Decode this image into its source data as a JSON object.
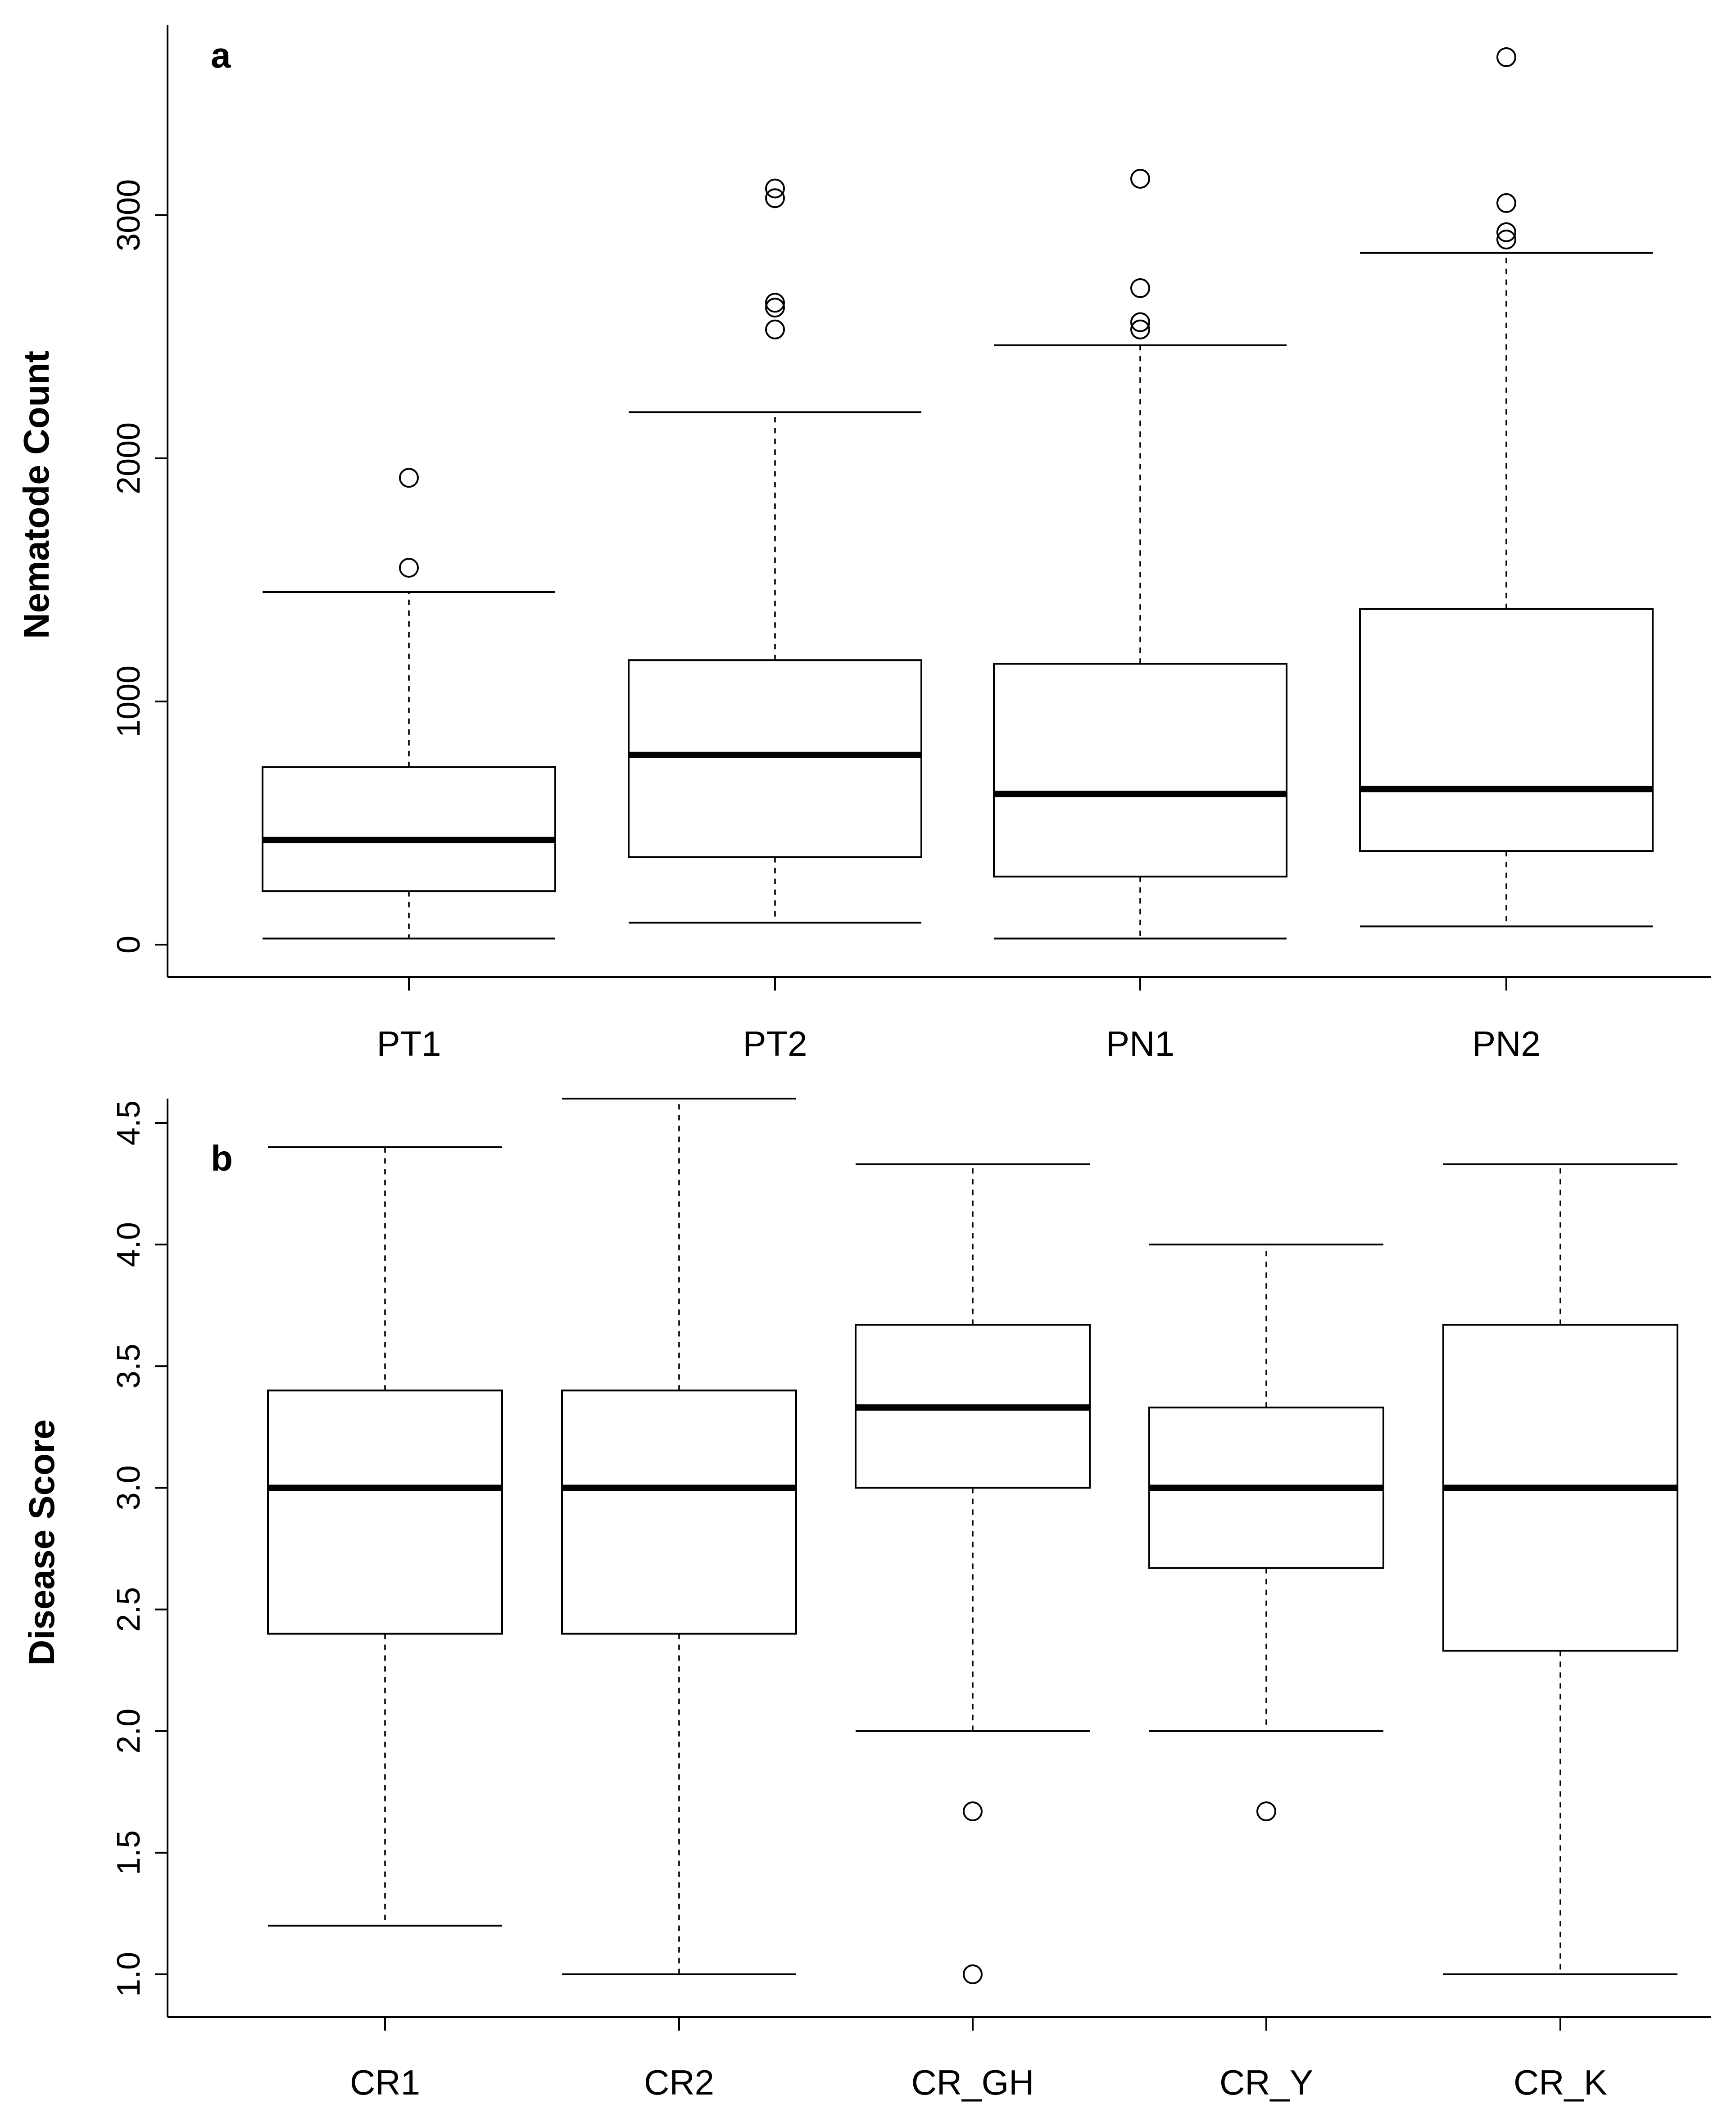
{
  "chart_data": [
    {
      "type": "boxplot",
      "panel_label": "a",
      "ylabel": "Nematode Count",
      "ylim": [
        0,
        3700
      ],
      "yticks": [
        0,
        1000,
        2000,
        3000
      ],
      "categories": [
        "PT1",
        "PT2",
        "PN1",
        "PN2"
      ],
      "boxes": [
        {
          "name": "PT1",
          "min": 25,
          "q1": 220,
          "median": 430,
          "q3": 730,
          "max": 1450,
          "outliers": [
            1550,
            1920
          ]
        },
        {
          "name": "PT2",
          "min": 90,
          "q1": 360,
          "median": 780,
          "q3": 1170,
          "max": 2190,
          "outliers": [
            2530,
            2620,
            2640,
            3070,
            3110
          ]
        },
        {
          "name": "PN1",
          "min": 25,
          "q1": 280,
          "median": 620,
          "q3": 1155,
          "max": 2465,
          "outliers": [
            2530,
            2560,
            2700,
            3150
          ]
        },
        {
          "name": "PN2",
          "min": 75,
          "q1": 385,
          "median": 640,
          "q3": 1380,
          "max": 2845,
          "outliers": [
            2900,
            2930,
            3050,
            3650
          ]
        }
      ]
    },
    {
      "type": "boxplot",
      "panel_label": "b",
      "ylabel": "Disease Score",
      "ylim": [
        0.95,
        4.6
      ],
      "yticks": [
        "1.0",
        "1.5",
        "2.0",
        "2.5",
        "3.0",
        "3.5",
        "4.0",
        "4.5"
      ],
      "categories": [
        "CR1",
        "CR2",
        "CR_GH",
        "CR_Y",
        "CR_K"
      ],
      "boxes": [
        {
          "name": "CR1",
          "min": 1.2,
          "q1": 2.4,
          "median": 3.0,
          "q3": 3.4,
          "max": 4.4,
          "outliers": []
        },
        {
          "name": "CR2",
          "min": 1.0,
          "q1": 2.4,
          "median": 3.0,
          "q3": 3.4,
          "max": 4.6,
          "outliers": []
        },
        {
          "name": "CR_GH",
          "min": 2.0,
          "q1": 3.0,
          "median": 3.33,
          "q3": 3.67,
          "max": 4.33,
          "outliers": [
            1.67,
            1.0
          ]
        },
        {
          "name": "CR_Y",
          "min": 2.0,
          "q1": 2.67,
          "median": 3.0,
          "q3": 3.33,
          "max": 4.0,
          "outliers": [
            1.67
          ]
        },
        {
          "name": "CR_K",
          "min": 1.0,
          "q1": 2.33,
          "median": 3.0,
          "q3": 3.67,
          "max": 4.33,
          "outliers": []
        }
      ]
    }
  ]
}
